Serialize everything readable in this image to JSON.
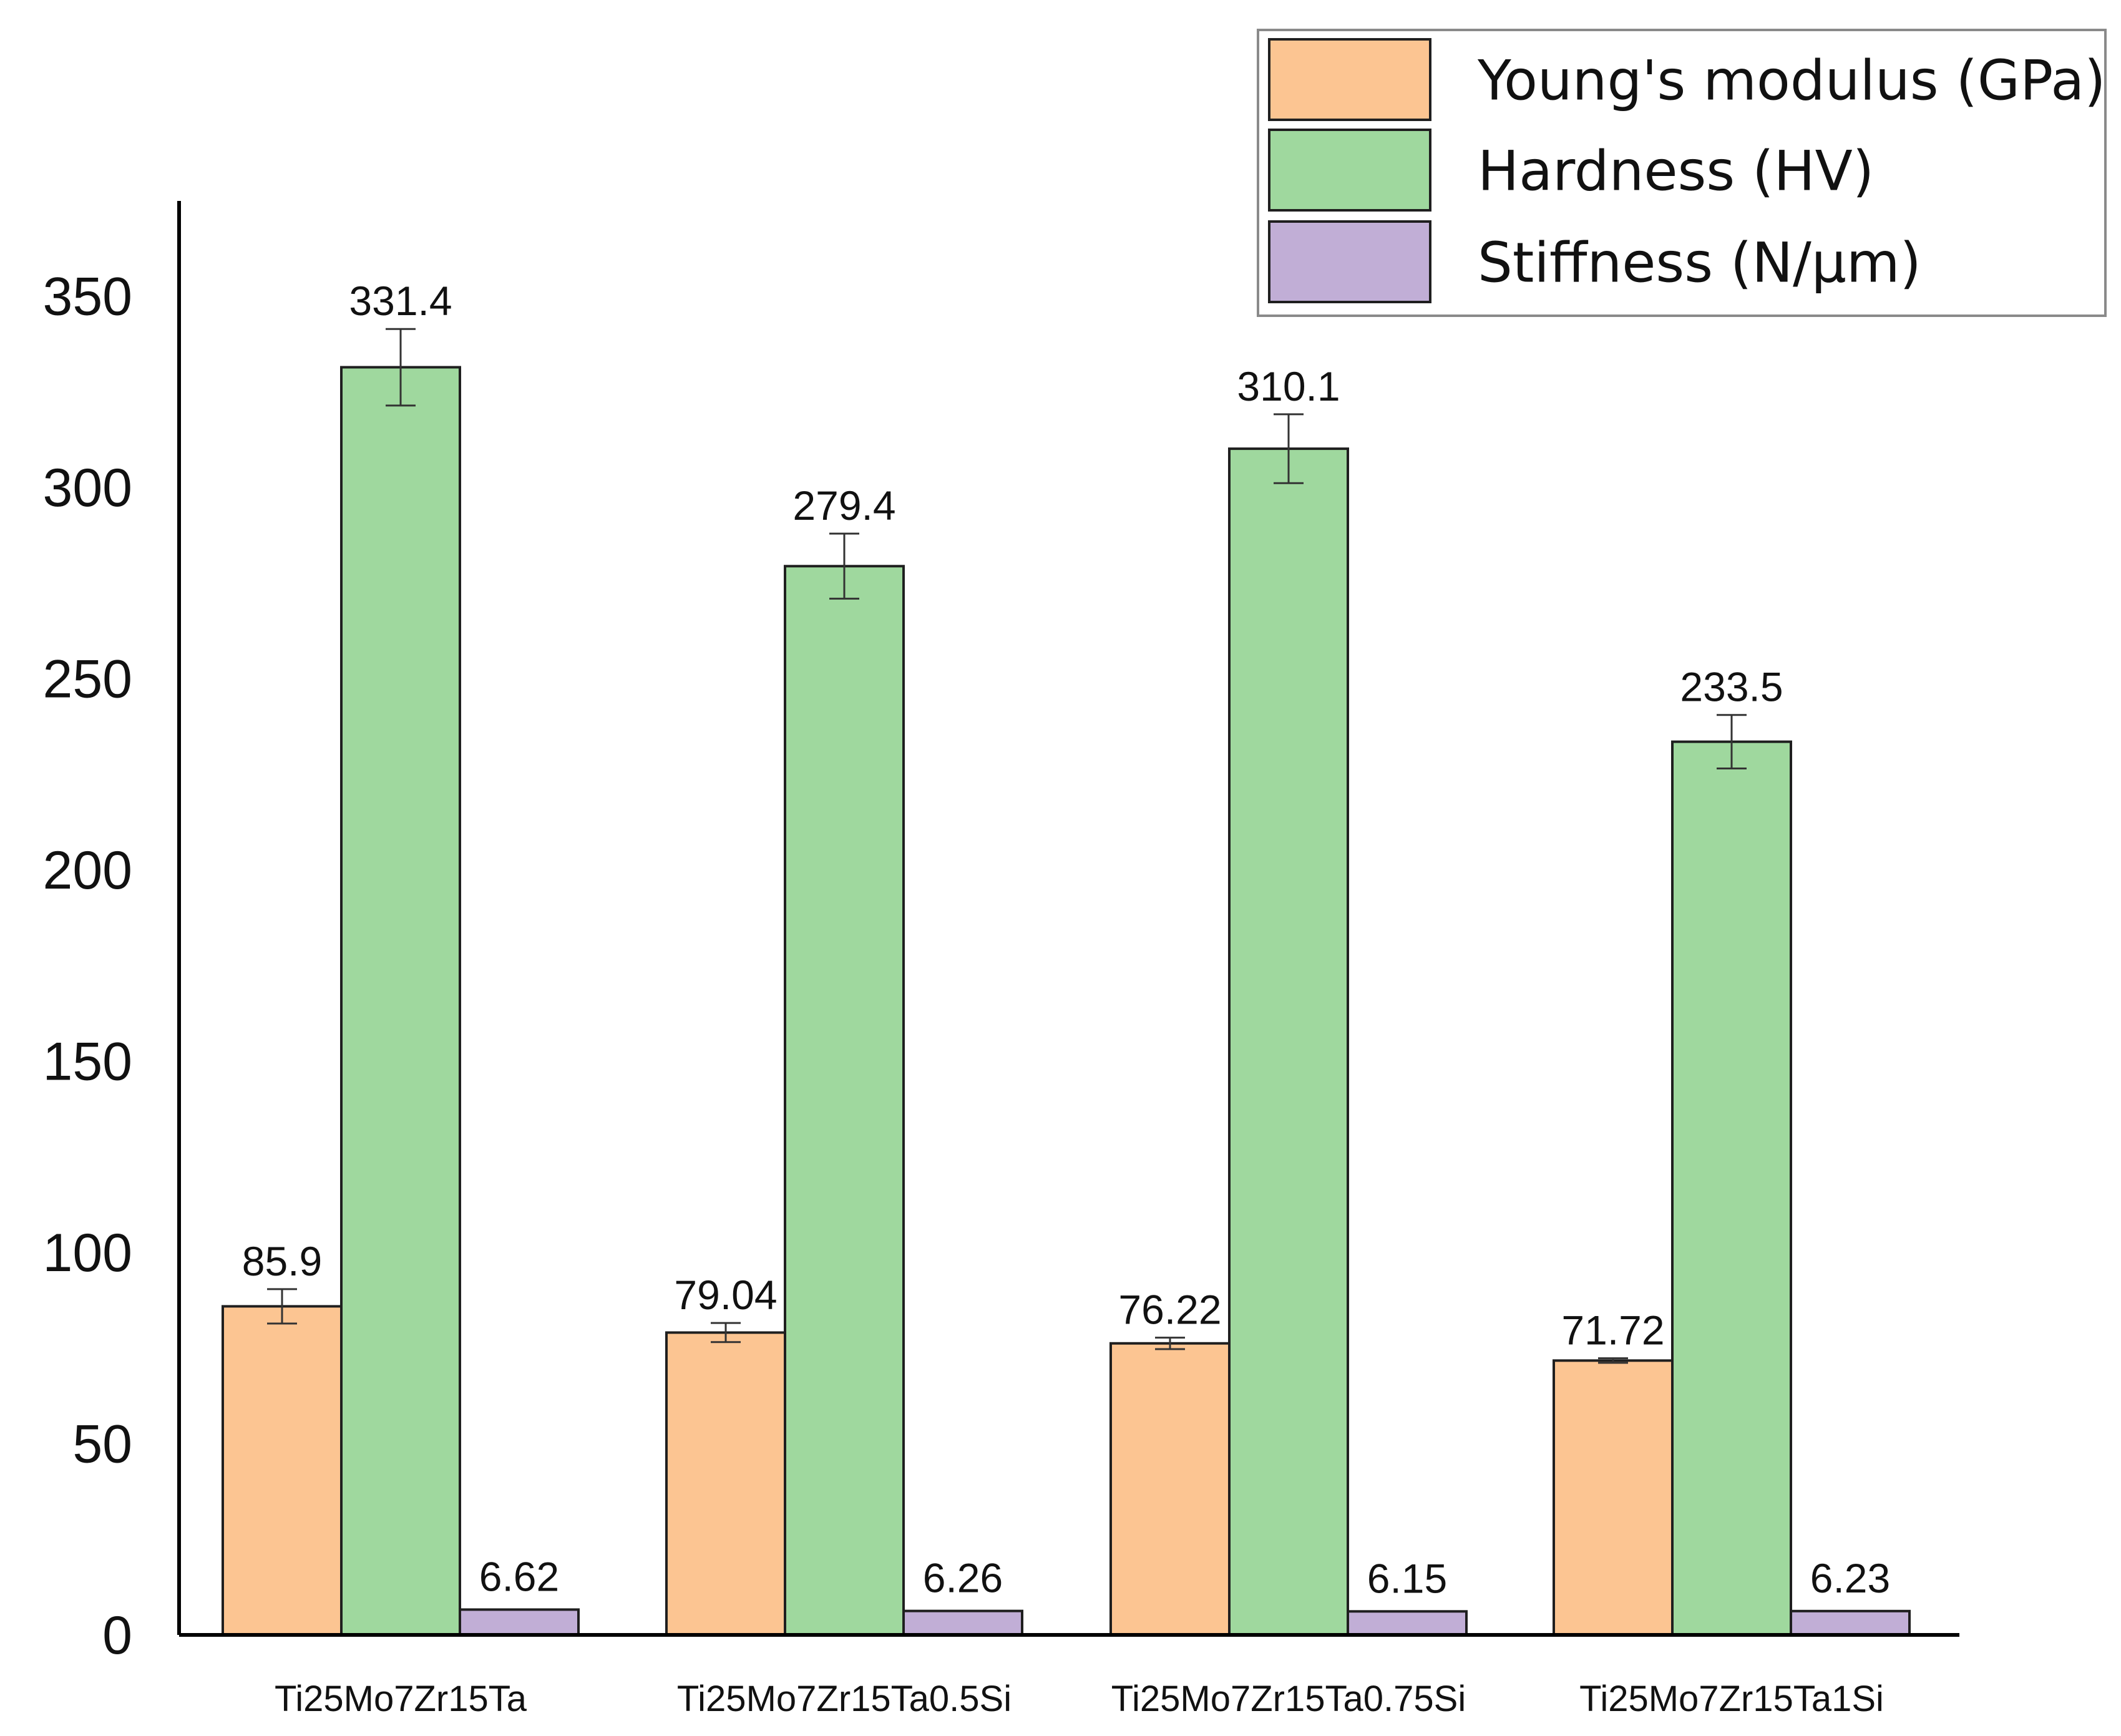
{
  "chart_data": {
    "type": "bar",
    "title": "",
    "xlabel": "",
    "ylabel": "",
    "ylim": [
      0,
      370
    ],
    "yticks": [
      0,
      50,
      100,
      150,
      200,
      250,
      300,
      350
    ],
    "grid": false,
    "legend_position": "top-right",
    "categories": [
      "Ti25Mo7Zr15Ta",
      "Ti25Mo7Zr15Ta0.5Si",
      "Ti25Mo7Zr15Ta0.75Si",
      "Ti25Mo7Zr15Ta1Si"
    ],
    "series": [
      {
        "name": "Young's modulus (GPa)",
        "color": "#fcc592",
        "values": [
          85.9,
          79.04,
          76.22,
          71.72
        ],
        "labels": [
          "85.9",
          "79.04",
          "76.22",
          "71.72"
        ],
        "errors": [
          4.5,
          2.5,
          1.5,
          0.6
        ]
      },
      {
        "name": "Hardness (HV)",
        "color": "#9fd89e",
        "values": [
          331.4,
          279.4,
          310.1,
          233.5
        ],
        "labels": [
          "331.4",
          "279.4",
          "310.1",
          "233.5"
        ],
        "errors": [
          10,
          8.5,
          9,
          7
        ]
      },
      {
        "name": "Stiffness (N/µm)",
        "color": "#c1aed6",
        "values": [
          6.62,
          6.26,
          6.15,
          6.23
        ],
        "labels": [
          "6.62",
          "6.26",
          "6.15",
          "6.23"
        ],
        "errors": [
          0,
          0,
          0,
          0
        ]
      }
    ]
  }
}
